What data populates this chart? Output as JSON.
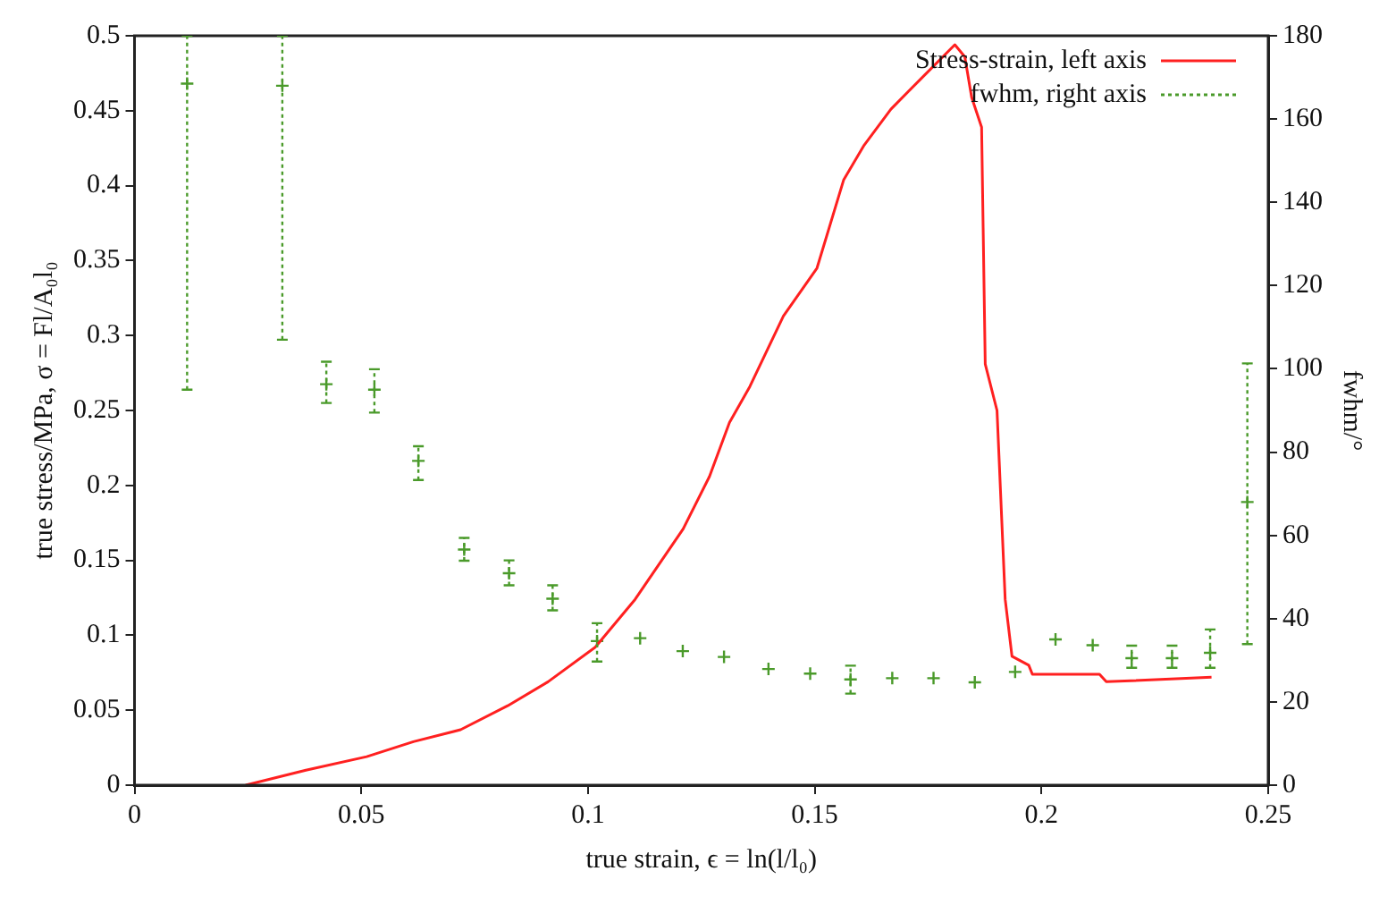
{
  "chart_data": {
    "type": "line",
    "xlabel": "true strain, ϵ = ln(l/l₀)",
    "ylabel": "true stress/MPa, σ = Fl/A₀l₀",
    "y2label": "fwhm/°",
    "xlim": [
      0,
      0.25
    ],
    "xticks": [
      0,
      0.05,
      0.1,
      0.15,
      0.2,
      0.25
    ],
    "ylim": [
      0,
      0.5
    ],
    "yticks": [
      0,
      0.05,
      0.1,
      0.15,
      0.2,
      0.25,
      0.3,
      0.35,
      0.4,
      0.45,
      0.5
    ],
    "y2lim": [
      0,
      180
    ],
    "y2ticks": [
      0,
      20,
      40,
      60,
      80,
      100,
      120,
      140,
      160,
      180
    ],
    "grid": false,
    "legend": "top right",
    "series": [
      {
        "name": "Stress-strain, left axis",
        "color": "#ff2020",
        "marker": "none",
        "line_style": "solid",
        "x": [
          0.0245,
          0.0378,
          0.0512,
          0.0615,
          0.0719,
          0.0823,
          0.0912,
          0.1016,
          0.1104,
          0.121,
          0.1268,
          0.1312,
          0.1357,
          0.1431,
          0.1505,
          0.1564,
          0.1609,
          0.1668,
          0.1743,
          0.1809,
          0.1831,
          0.1846,
          0.1868,
          0.1876,
          0.1902,
          0.192,
          0.1935,
          0.1972,
          0.198,
          0.2128,
          0.2143,
          0.2375
        ],
        "values": [
          0,
          0.01,
          0.019,
          0.029,
          0.037,
          0.053,
          0.069,
          0.092,
          0.124,
          0.171,
          0.206,
          0.242,
          0.266,
          0.313,
          0.345,
          0.404,
          0.427,
          0.451,
          0.474,
          0.494,
          0.486,
          0.459,
          0.439,
          0.281,
          0.25,
          0.124,
          0.086,
          0.08,
          0.074,
          0.074,
          0.069,
          0.072
        ]
      },
      {
        "name": "fwhm, right axis",
        "type": "scatter",
        "axis": "y2",
        "color": "#4a9a2a",
        "marker": "cross",
        "x": [
          0.0116,
          0.0326,
          0.0423,
          0.0529,
          0.0626,
          0.0727,
          0.0826,
          0.0922,
          0.102,
          0.1115,
          0.1209,
          0.13,
          0.1398,
          0.149,
          0.1579,
          0.1671,
          0.1762,
          0.1853,
          0.1942,
          0.2031,
          0.2113,
          0.2199,
          0.2288,
          0.2372,
          0.2454
        ],
        "values": [
          168.5,
          168,
          96.3,
          95,
          77.9,
          56.6,
          50.9,
          44.8,
          34.6,
          35.3,
          32.2,
          30.8,
          27.9,
          26.8,
          25.4,
          25.7,
          25.7,
          24.7,
          27.2,
          35,
          33.6,
          30.5,
          30.5,
          31.8,
          68
        ],
        "errors": [
          [
            95,
            180
          ],
          [
            107,
            180
          ],
          [
            91.8,
            101.7
          ],
          [
            89.5,
            99.9
          ],
          [
            73.3,
            81.4
          ],
          [
            53.9,
            59.4
          ],
          [
            48,
            54
          ],
          [
            42,
            48
          ],
          [
            29.7,
            38.9
          ],
          null,
          null,
          null,
          null,
          null,
          [
            22,
            28.7
          ],
          null,
          null,
          null,
          null,
          null,
          null,
          [
            28.2,
            33.5
          ],
          [
            28.2,
            33.5
          ],
          [
            28.2,
            37.4
          ],
          [
            33.9,
            101.3
          ]
        ]
      }
    ]
  }
}
